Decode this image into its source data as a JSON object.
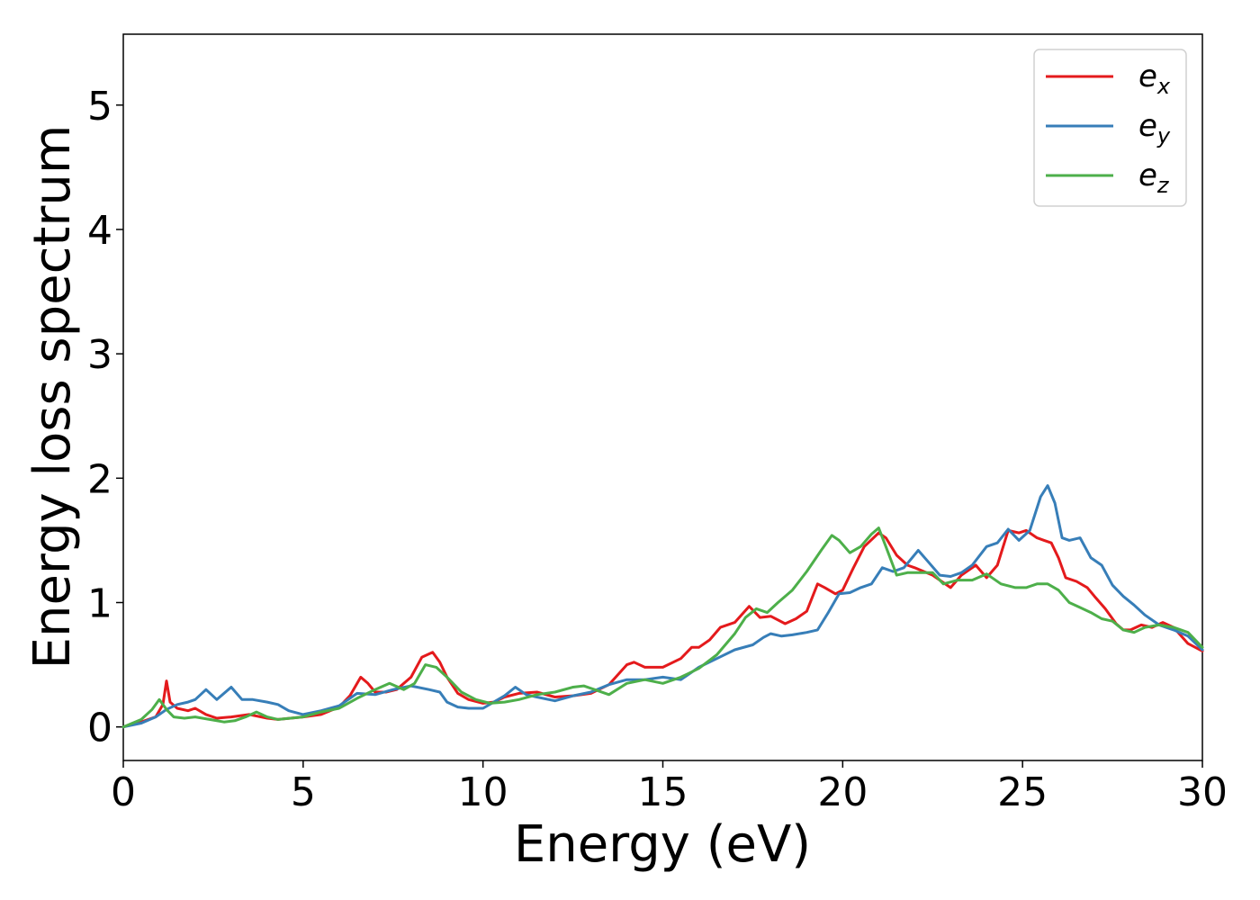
{
  "chart_data": {
    "type": "line",
    "xlabel": "Energy (eV)",
    "ylabel": "Energy loss spectrum",
    "xlim": [
      0,
      30
    ],
    "ylim": [
      -0.27,
      5.57
    ],
    "xticks": [
      "0",
      "5",
      "10",
      "15",
      "20",
      "25",
      "30"
    ],
    "yticks": [
      "0",
      "1",
      "2",
      "3",
      "4",
      "5"
    ],
    "grid": false,
    "legend_position": "top-right",
    "series": [
      {
        "name": "e_x",
        "label_base": "e",
        "label_sub": "x",
        "color": "#e41a1c",
        "x": [
          0,
          0.5,
          0.9,
          1.1,
          1.2,
          1.3,
          1.5,
          1.8,
          2.0,
          2.3,
          2.6,
          3.0,
          3.5,
          4.0,
          4.3,
          5.0,
          5.5,
          6.0,
          6.3,
          6.6,
          6.8,
          7.0,
          7.3,
          7.6,
          8.0,
          8.3,
          8.6,
          8.8,
          9.0,
          9.3,
          9.6,
          10.0,
          10.3,
          10.6,
          11.0,
          11.5,
          12.0,
          12.5,
          13.0,
          13.5,
          14.0,
          14.2,
          14.5,
          15.0,
          15.5,
          15.8,
          16.0,
          16.3,
          16.6,
          17.0,
          17.4,
          17.7,
          18.0,
          18.4,
          18.7,
          19.0,
          19.3,
          19.5,
          19.8,
          20.0,
          20.3,
          20.6,
          21.0,
          21.2,
          21.5,
          21.8,
          22.0,
          22.5,
          22.8,
          23.0,
          23.3,
          23.7,
          24.0,
          24.3,
          24.6,
          24.9,
          25.1,
          25.4,
          25.6,
          25.8,
          26.0,
          26.2,
          26.5,
          26.8,
          27.0,
          27.3,
          27.6,
          27.8,
          28.0,
          28.3,
          28.6,
          28.9,
          29.2,
          29.6,
          30.0
        ],
        "y": [
          0.0,
          0.04,
          0.08,
          0.18,
          0.37,
          0.2,
          0.15,
          0.13,
          0.15,
          0.1,
          0.07,
          0.08,
          0.1,
          0.07,
          0.06,
          0.08,
          0.1,
          0.16,
          0.25,
          0.4,
          0.35,
          0.28,
          0.28,
          0.3,
          0.4,
          0.56,
          0.6,
          0.52,
          0.4,
          0.27,
          0.22,
          0.19,
          0.2,
          0.24,
          0.27,
          0.28,
          0.24,
          0.25,
          0.27,
          0.34,
          0.5,
          0.52,
          0.48,
          0.48,
          0.55,
          0.64,
          0.64,
          0.7,
          0.8,
          0.84,
          0.97,
          0.88,
          0.89,
          0.83,
          0.87,
          0.93,
          1.15,
          1.12,
          1.07,
          1.1,
          1.28,
          1.45,
          1.56,
          1.52,
          1.38,
          1.3,
          1.28,
          1.22,
          1.16,
          1.12,
          1.22,
          1.3,
          1.2,
          1.3,
          1.58,
          1.56,
          1.58,
          1.52,
          1.5,
          1.48,
          1.36,
          1.2,
          1.17,
          1.12,
          1.05,
          0.95,
          0.83,
          0.78,
          0.78,
          0.82,
          0.8,
          0.84,
          0.8,
          0.67,
          0.61
        ]
      },
      {
        "name": "e_y",
        "label_base": "e",
        "label_sub": "y",
        "color": "#377eb8",
        "x": [
          0,
          0.5,
          0.9,
          1.2,
          1.5,
          1.8,
          2.0,
          2.3,
          2.6,
          3.0,
          3.3,
          3.6,
          4.0,
          4.3,
          4.6,
          5.0,
          5.5,
          6.0,
          6.5,
          7.0,
          7.5,
          8.0,
          8.5,
          8.8,
          9.0,
          9.3,
          9.6,
          10.0,
          10.3,
          10.6,
          10.9,
          11.2,
          11.5,
          12.0,
          12.5,
          13.0,
          13.5,
          14.0,
          14.5,
          15.0,
          15.5,
          16.0,
          16.5,
          17.0,
          17.5,
          17.8,
          18.0,
          18.3,
          18.6,
          19.0,
          19.3,
          19.6,
          19.9,
          20.2,
          20.5,
          20.8,
          21.1,
          21.4,
          21.7,
          22.1,
          22.4,
          22.7,
          23.0,
          23.3,
          23.6,
          24.0,
          24.3,
          24.6,
          24.9,
          25.2,
          25.5,
          25.7,
          25.9,
          26.1,
          26.3,
          26.6,
          26.9,
          27.2,
          27.5,
          27.8,
          28.1,
          28.4,
          28.8,
          29.2,
          29.6,
          30.0
        ],
        "y": [
          0.0,
          0.03,
          0.08,
          0.14,
          0.18,
          0.2,
          0.22,
          0.3,
          0.22,
          0.32,
          0.22,
          0.22,
          0.2,
          0.18,
          0.13,
          0.1,
          0.13,
          0.17,
          0.27,
          0.26,
          0.3,
          0.33,
          0.3,
          0.28,
          0.2,
          0.16,
          0.15,
          0.15,
          0.2,
          0.25,
          0.32,
          0.26,
          0.24,
          0.21,
          0.25,
          0.28,
          0.34,
          0.38,
          0.38,
          0.4,
          0.38,
          0.48,
          0.55,
          0.62,
          0.66,
          0.72,
          0.75,
          0.73,
          0.74,
          0.76,
          0.78,
          0.92,
          1.07,
          1.08,
          1.12,
          1.15,
          1.28,
          1.25,
          1.28,
          1.42,
          1.32,
          1.22,
          1.21,
          1.24,
          1.3,
          1.45,
          1.48,
          1.59,
          1.5,
          1.58,
          1.85,
          1.94,
          1.8,
          1.52,
          1.5,
          1.52,
          1.36,
          1.3,
          1.14,
          1.05,
          0.98,
          0.9,
          0.82,
          0.78,
          0.73,
          0.62
        ]
      },
      {
        "name": "e_z",
        "label_base": "e",
        "label_sub": "z",
        "color": "#4daf4a",
        "x": [
          0,
          0.5,
          0.8,
          1.0,
          1.2,
          1.4,
          1.7,
          2.0,
          2.4,
          2.8,
          3.1,
          3.4,
          3.7,
          4.0,
          4.3,
          5.0,
          5.5,
          6.0,
          6.5,
          7.0,
          7.4,
          7.8,
          8.1,
          8.4,
          8.7,
          9.0,
          9.4,
          9.8,
          10.2,
          10.6,
          11.0,
          11.5,
          12.0,
          12.5,
          12.8,
          13.1,
          13.5,
          14.0,
          14.5,
          15.0,
          15.5,
          16.0,
          16.5,
          17.0,
          17.3,
          17.6,
          17.9,
          18.2,
          18.6,
          19.0,
          19.4,
          19.7,
          19.9,
          20.2,
          20.5,
          20.8,
          21.0,
          21.2,
          21.5,
          21.8,
          22.1,
          22.5,
          22.8,
          23.2,
          23.6,
          24.0,
          24.4,
          24.8,
          25.1,
          25.4,
          25.7,
          26.0,
          26.3,
          26.6,
          26.9,
          27.2,
          27.5,
          27.8,
          28.1,
          28.4,
          28.8,
          29.2,
          29.6,
          30.0
        ],
        "y": [
          0.0,
          0.06,
          0.14,
          0.22,
          0.14,
          0.08,
          0.07,
          0.08,
          0.06,
          0.04,
          0.05,
          0.08,
          0.12,
          0.08,
          0.06,
          0.08,
          0.12,
          0.15,
          0.23,
          0.3,
          0.35,
          0.3,
          0.35,
          0.5,
          0.48,
          0.4,
          0.28,
          0.22,
          0.19,
          0.2,
          0.22,
          0.26,
          0.28,
          0.32,
          0.33,
          0.3,
          0.26,
          0.35,
          0.38,
          0.35,
          0.4,
          0.47,
          0.58,
          0.75,
          0.88,
          0.95,
          0.92,
          1.0,
          1.1,
          1.25,
          1.42,
          1.54,
          1.5,
          1.4,
          1.45,
          1.55,
          1.6,
          1.45,
          1.22,
          1.24,
          1.24,
          1.24,
          1.15,
          1.18,
          1.18,
          1.23,
          1.15,
          1.12,
          1.12,
          1.15,
          1.15,
          1.1,
          1.0,
          0.96,
          0.92,
          0.87,
          0.85,
          0.78,
          0.76,
          0.8,
          0.82,
          0.8,
          0.76,
          0.64
        ]
      }
    ]
  }
}
